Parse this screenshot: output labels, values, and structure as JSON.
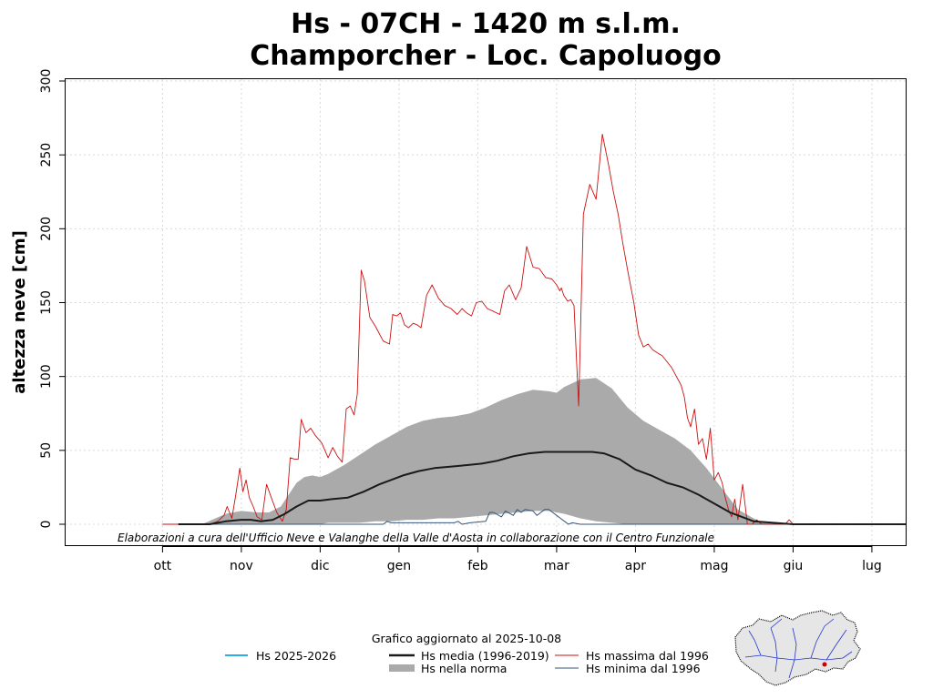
{
  "chart_data": {
    "type": "line",
    "title": "Hs - 07CH - 1420 m s.l.m.",
    "subtitle": "Champorcher - Loc. Capoluogo",
    "ylabel": "altezza neve [cm]",
    "xlabel": "",
    "ylim": [
      0,
      300
    ],
    "xlim": [
      -1.23,
      9.44
    ],
    "yticks": [
      0,
      50,
      100,
      150,
      200,
      250,
      300
    ],
    "months": [
      "ott",
      "nov",
      "dic",
      "gen",
      "feb",
      "mar",
      "apr",
      "mag",
      "giu",
      "lug"
    ],
    "x_unit": "months since start of ottobre",
    "credit": "Elaborazioni a cura dell'Ufficio Neve e Valanghe della Valle d'Aosta in collaborazione con il Centro Funzionale",
    "updated": "Grafico aggiornato al 2025-10-08",
    "colors": {
      "current": "#29aee8",
      "media": "#1a1a1a",
      "norma": "#aaaaaa",
      "massima": "#cc1111",
      "minima": "#335577"
    },
    "series": [
      {
        "name": "Hs 2025-2026",
        "key": "current",
        "x": [],
        "y": []
      },
      {
        "name": "Hs media (1996-2019)",
        "key": "media",
        "x": [
          0.2,
          0.6,
          0.8,
          1.0,
          1.12,
          1.25,
          1.4,
          1.55,
          1.7,
          1.85,
          2.0,
          2.15,
          2.35,
          2.55,
          2.75,
          2.9,
          3.05,
          3.25,
          3.45,
          3.65,
          3.85,
          4.05,
          4.25,
          4.45,
          4.65,
          4.85,
          5.05,
          5.25,
          5.45,
          5.6,
          5.8,
          6.0,
          6.2,
          6.4,
          6.6,
          6.8,
          7.0,
          7.2,
          7.5,
          8.0,
          9.0,
          9.44
        ],
        "y": [
          0,
          0,
          2,
          3,
          3,
          2,
          3,
          7,
          12,
          16,
          16,
          17,
          18,
          22,
          27,
          30,
          33,
          36,
          38,
          39,
          40,
          41,
          43,
          46,
          48,
          49,
          49,
          49,
          49,
          48,
          44,
          37,
          33,
          28,
          25,
          20,
          14,
          8,
          2,
          0,
          0,
          0
        ]
      },
      {
        "name": "Hs massima dal 1996",
        "key": "massima",
        "x": [
          0.0,
          0.6,
          0.7,
          0.78,
          0.82,
          0.88,
          0.93,
          0.98,
          1.02,
          1.06,
          1.1,
          1.15,
          1.2,
          1.26,
          1.32,
          1.38,
          1.45,
          1.52,
          1.57,
          1.62,
          1.68,
          1.72,
          1.76,
          1.82,
          1.88,
          1.94,
          2.02,
          2.1,
          2.16,
          2.22,
          2.28,
          2.33,
          2.38,
          2.43,
          2.47,
          2.52,
          2.56,
          2.63,
          2.7,
          2.8,
          2.88,
          2.92,
          2.97,
          3.02,
          3.07,
          3.12,
          3.18,
          3.23,
          3.28,
          3.35,
          3.42,
          3.5,
          3.58,
          3.66,
          3.74,
          3.8,
          3.86,
          3.92,
          3.98,
          4.05,
          4.12,
          4.2,
          4.28,
          4.34,
          4.4,
          4.48,
          4.55,
          4.62,
          4.7,
          4.78,
          4.86,
          4.94,
          5.0,
          5.04,
          5.06,
          5.09,
          5.14,
          5.18,
          5.22,
          5.28,
          5.34,
          5.42,
          5.5,
          5.58,
          5.66,
          5.72,
          5.78,
          5.84,
          5.9,
          5.98,
          6.04,
          6.1,
          6.16,
          6.22,
          6.28,
          6.34,
          6.4,
          6.46,
          6.52,
          6.58,
          6.62,
          6.66,
          6.7,
          6.75,
          6.8,
          6.85,
          6.9,
          6.95,
          7.0,
          7.05,
          7.1,
          7.14,
          7.18,
          7.22,
          7.26,
          7.3,
          7.36,
          7.42,
          7.48,
          7.54,
          7.6,
          7.66,
          7.72,
          7.78,
          7.84,
          7.9,
          7.95,
          8.0,
          9.44
        ],
        "y": [
          0,
          0,
          2,
          6,
          12,
          4,
          20,
          38,
          22,
          30,
          18,
          12,
          5,
          3,
          27,
          18,
          8,
          2,
          10,
          45,
          44,
          44,
          71,
          62,
          65,
          60,
          55,
          45,
          52,
          46,
          42,
          78,
          80,
          74,
          88,
          172,
          165,
          140,
          134,
          124,
          122,
          142,
          141,
          143,
          135,
          133,
          136,
          135,
          133,
          155,
          162,
          153,
          148,
          146,
          142,
          146,
          143,
          141,
          150,
          151,
          146,
          144,
          142,
          158,
          162,
          152,
          160,
          188,
          174,
          173,
          167,
          166,
          162,
          158,
          160,
          155,
          151,
          152,
          148,
          80,
          210,
          230,
          220,
          264,
          243,
          225,
          210,
          190,
          172,
          150,
          128,
          120,
          122,
          118,
          116,
          114,
          110,
          106,
          100,
          94,
          86,
          72,
          66,
          78,
          54,
          58,
          44,
          65,
          30,
          35,
          28,
          18,
          10,
          5,
          17,
          3,
          27,
          0,
          0,
          3,
          0,
          0,
          0,
          0,
          0,
          0,
          3,
          0,
          0
        ],
        "note": "sampled at points; drawn polyline"
      },
      {
        "name": "Hs minima dal 1996",
        "key": "minima",
        "x": [
          0.0,
          2.8,
          2.85,
          2.9,
          3.7,
          3.75,
          3.8,
          3.9,
          4.1,
          4.15,
          4.2,
          4.3,
          4.35,
          4.45,
          4.5,
          4.55,
          4.6,
          4.7,
          4.75,
          4.8,
          4.85,
          4.9,
          4.95,
          5.0,
          5.05,
          5.1,
          5.15,
          5.2,
          5.3,
          5.35,
          9.44
        ],
        "y": [
          0,
          0,
          2,
          1,
          1,
          2,
          0,
          1,
          2,
          8,
          8,
          5,
          9,
          6,
          10,
          8,
          10,
          9,
          6,
          8,
          10,
          10,
          8,
          6,
          4,
          2,
          0,
          1,
          0,
          0,
          0
        ]
      },
      {
        "name": "Hs nella norma",
        "key": "norma",
        "x": [
          0.5,
          0.8,
          1.0,
          1.2,
          1.35,
          1.5,
          1.6,
          1.7,
          1.8,
          1.9,
          2.0,
          2.1,
          2.3,
          2.5,
          2.7,
          2.9,
          3.1,
          3.3,
          3.5,
          3.7,
          3.9,
          4.1,
          4.3,
          4.5,
          4.7,
          4.9,
          5.0,
          5.1,
          5.3,
          5.5,
          5.7,
          5.9,
          6.1,
          6.3,
          6.5,
          6.7,
          6.9,
          7.1,
          7.3,
          7.6,
          8.0,
          9.44
        ],
        "upper": [
          0,
          7,
          9,
          8,
          8,
          12,
          20,
          28,
          32,
          33,
          32,
          34,
          40,
          47,
          54,
          60,
          66,
          70,
          72,
          73,
          75,
          79,
          84,
          88,
          91,
          90,
          89,
          93,
          98,
          99,
          92,
          79,
          70,
          64,
          58,
          50,
          38,
          24,
          10,
          1,
          0,
          0
        ],
        "lower": [
          0,
          0,
          0,
          0,
          0,
          0,
          0,
          0,
          0,
          0,
          0,
          1,
          1,
          1,
          2,
          2,
          3,
          3,
          4,
          4,
          5,
          6,
          7,
          8,
          9,
          9,
          8,
          7,
          4,
          2,
          1,
          0,
          0,
          0,
          0,
          0,
          0,
          0,
          0,
          0,
          0,
          0
        ]
      }
    ]
  },
  "legend": {
    "current": "Hs 2025-2026",
    "media": "Hs media (1996-2019)",
    "norma": "Hs nella norma",
    "massima": "Hs massima dal 1996",
    "minima": "Hs minima dal 1996"
  }
}
